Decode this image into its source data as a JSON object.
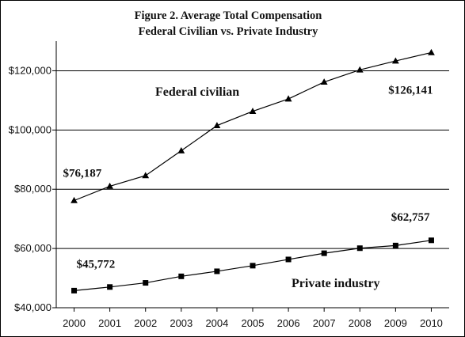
{
  "figure": {
    "title_line1": "Figure 2. Average Total Compensation",
    "title_line2": "Federal Civilian vs. Private Industry"
  },
  "chart_data": {
    "type": "line",
    "x": [
      2000,
      2001,
      2002,
      2003,
      2004,
      2005,
      2006,
      2007,
      2008,
      2009,
      2010
    ],
    "x_tick_labels": [
      "2000",
      "2001",
      "2002",
      "2003",
      "2004",
      "2005",
      "2006",
      "2007",
      "2008",
      "2009",
      "2010"
    ],
    "y_tick_values": [
      40000,
      60000,
      80000,
      100000,
      120000
    ],
    "y_tick_labels": [
      "$40,000",
      "$60,000",
      "$80,000",
      "$100,000",
      "$120,000"
    ],
    "ylim": [
      40000,
      130000
    ],
    "grid": "horizontal",
    "series": [
      {
        "name": "Federal civilian",
        "marker": "triangle",
        "color": "#000000",
        "values": [
          76187,
          81000,
          84600,
          93000,
          101500,
          106300,
          110500,
          116200,
          120300,
          123300,
          126141
        ]
      },
      {
        "name": "Private industry",
        "marker": "square",
        "color": "#000000",
        "values": [
          45772,
          47000,
          48400,
          50600,
          52300,
          54200,
          56300,
          58400,
          60100,
          61000,
          62757
        ]
      }
    ],
    "annotations": [
      {
        "text": "$76,187",
        "series": 0,
        "point": 0
      },
      {
        "text": "$126,141",
        "series": 0,
        "point": 10
      },
      {
        "text": "$45,772",
        "series": 1,
        "point": 0
      },
      {
        "text": "$62,757",
        "series": 1,
        "point": 10
      }
    ]
  }
}
